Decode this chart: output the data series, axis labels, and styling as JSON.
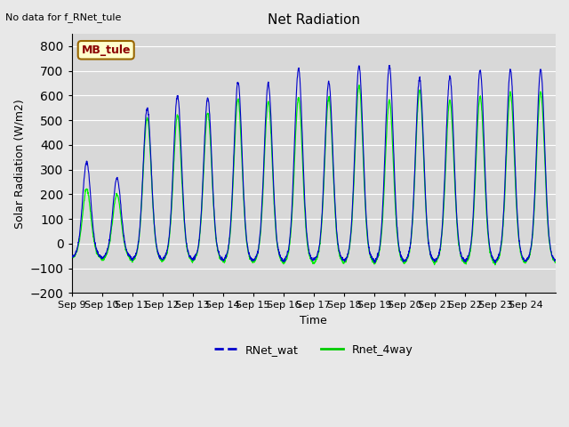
{
  "title": "Net Radiation",
  "xlabel": "Time",
  "ylabel": "Solar Radiation (W/m2)",
  "ylim": [
    -200,
    850
  ],
  "yticks": [
    -200,
    -100,
    0,
    100,
    200,
    300,
    400,
    500,
    600,
    700,
    800
  ],
  "x_labels": [
    "Sep 9",
    "Sep 10",
    "Sep 11",
    "Sep 12",
    "Sep 13",
    "Sep 14",
    "Sep 15",
    "Sep 16",
    "Sep 17",
    "Sep 18",
    "Sep 19",
    "Sep 20",
    "Sep 21",
    "Sep 22",
    "Sep 23",
    "Sep 24"
  ],
  "no_data_text": "No data for f_RNet_tule",
  "legend_label1": "RNet_wat",
  "legend_label2": "Rnet_4way",
  "legend_color1": "#0000cc",
  "legend_color2": "#00cc00",
  "station_label": "MB_tule",
  "bg_color": "#e8e8e8",
  "plot_bg_color": "#d8d8d8",
  "grid_color": "#ffffff",
  "line_color1": "#0000cc",
  "line_color2": "#00ee00",
  "n_days": 16,
  "pts_per_day": 144,
  "day_peaks_blue": [
    330,
    265,
    550,
    600,
    590,
    655,
    650,
    710,
    655,
    720,
    720,
    670,
    675,
    705,
    705,
    705
  ],
  "day_peaks_green": [
    220,
    200,
    510,
    520,
    530,
    585,
    575,
    590,
    590,
    640,
    580,
    620,
    580,
    595,
    610,
    615
  ],
  "night_min_blue": [
    -65,
    -70,
    -75,
    -75,
    -75,
    -80,
    -80,
    -80,
    -78,
    -80,
    -82,
    -82,
    -82,
    -82,
    -82,
    -82
  ],
  "night_min_green": [
    -70,
    -78,
    -82,
    -82,
    -82,
    -88,
    -88,
    -92,
    -92,
    -88,
    -90,
    -90,
    -90,
    -95,
    -90,
    -88
  ]
}
